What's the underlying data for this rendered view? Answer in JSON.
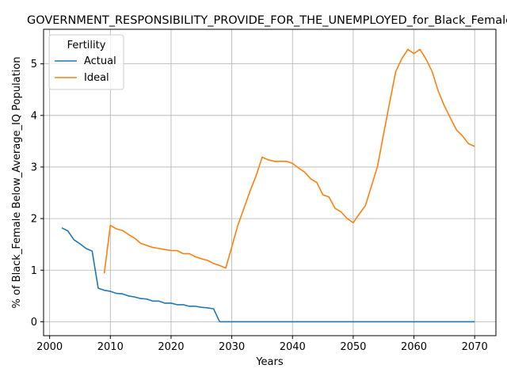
{
  "chart_data": {
    "type": "line",
    "title": "GOVERNMENT_RESPONSIBILITY_PROVIDE_FOR_THE_UNEMPLOYED_for_Black_Female",
    "xlabel": "Years",
    "ylabel": "% of Black_Female Below_Average_IQ Population",
    "xlim": [
      1999,
      2073.5
    ],
    "ylim": [
      -0.27,
      5.67
    ],
    "xticks": [
      2000,
      2010,
      2020,
      2030,
      2040,
      2050,
      2060,
      2070
    ],
    "yticks": [
      0,
      1,
      2,
      3,
      4,
      5
    ],
    "grid": true,
    "legend": {
      "title": "Fertility",
      "placement": "top-left"
    },
    "series": [
      {
        "name": "Actual",
        "color": "#1f77b4",
        "points": [
          [
            2002,
            1.82
          ],
          [
            2003,
            1.76
          ],
          [
            2004,
            1.59
          ],
          [
            2005,
            1.51
          ],
          [
            2006,
            1.42
          ],
          [
            2007,
            1.37
          ],
          [
            2008,
            0.65
          ],
          [
            2009,
            0.61
          ],
          [
            2010,
            0.59
          ],
          [
            2011,
            0.55
          ],
          [
            2012,
            0.54
          ],
          [
            2013,
            0.5
          ],
          [
            2014,
            0.48
          ],
          [
            2015,
            0.45
          ],
          [
            2016,
            0.44
          ],
          [
            2017,
            0.4
          ],
          [
            2018,
            0.4
          ],
          [
            2019,
            0.36
          ],
          [
            2020,
            0.36
          ],
          [
            2021,
            0.33
          ],
          [
            2022,
            0.33
          ],
          [
            2023,
            0.3
          ],
          [
            2024,
            0.3
          ],
          [
            2025,
            0.28
          ],
          [
            2026,
            0.27
          ],
          [
            2027,
            0.25
          ],
          [
            2028,
            0.0
          ],
          [
            2030,
            0.0
          ],
          [
            2040,
            0.0
          ],
          [
            2050,
            0.0
          ],
          [
            2060,
            0.0
          ],
          [
            2070,
            0.0
          ]
        ]
      },
      {
        "name": "Ideal",
        "color": "#ff7f0e",
        "points": [
          [
            2009,
            0.94
          ],
          [
            2010,
            1.87
          ],
          [
            2011,
            1.8
          ],
          [
            2012,
            1.77
          ],
          [
            2013,
            1.69
          ],
          [
            2014,
            1.62
          ],
          [
            2015,
            1.52
          ],
          [
            2016,
            1.48
          ],
          [
            2017,
            1.44
          ],
          [
            2018,
            1.42
          ],
          [
            2019,
            1.4
          ],
          [
            2020,
            1.38
          ],
          [
            2021,
            1.38
          ],
          [
            2022,
            1.32
          ],
          [
            2023,
            1.32
          ],
          [
            2024,
            1.26
          ],
          [
            2025,
            1.22
          ],
          [
            2026,
            1.19
          ],
          [
            2027,
            1.13
          ],
          [
            2028,
            1.09
          ],
          [
            2029,
            1.04
          ],
          [
            2030,
            1.45
          ],
          [
            2031,
            1.87
          ],
          [
            2032,
            2.2
          ],
          [
            2033,
            2.53
          ],
          [
            2034,
            2.83
          ],
          [
            2035,
            3.19
          ],
          [
            2036,
            3.14
          ],
          [
            2037,
            3.11
          ],
          [
            2038,
            3.11
          ],
          [
            2039,
            3.11
          ],
          [
            2040,
            3.07
          ],
          [
            2041,
            2.98
          ],
          [
            2042,
            2.9
          ],
          [
            2043,
            2.77
          ],
          [
            2044,
            2.7
          ],
          [
            2045,
            2.46
          ],
          [
            2046,
            2.42
          ],
          [
            2047,
            2.2
          ],
          [
            2048,
            2.13
          ],
          [
            2049,
            2.0
          ],
          [
            2050,
            1.92
          ],
          [
            2051,
            2.09
          ],
          [
            2052,
            2.25
          ],
          [
            2053,
            2.63
          ],
          [
            2054,
            3.01
          ],
          [
            2055,
            3.64
          ],
          [
            2056,
            4.25
          ],
          [
            2057,
            4.85
          ],
          [
            2058,
            5.1
          ],
          [
            2059,
            5.28
          ],
          [
            2060,
            5.2
          ],
          [
            2061,
            5.28
          ],
          [
            2062,
            5.09
          ],
          [
            2063,
            4.85
          ],
          [
            2064,
            4.47
          ],
          [
            2065,
            4.19
          ],
          [
            2066,
            3.95
          ],
          [
            2067,
            3.72
          ],
          [
            2068,
            3.6
          ],
          [
            2069,
            3.45
          ],
          [
            2070,
            3.4
          ]
        ]
      }
    ]
  }
}
